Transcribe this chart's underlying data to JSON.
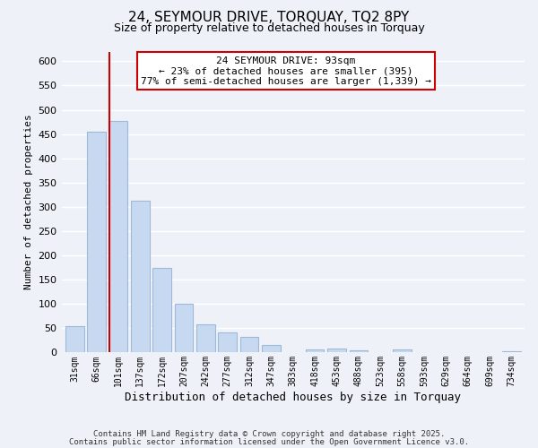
{
  "title_line1": "24, SEYMOUR DRIVE, TORQUAY, TQ2 8PY",
  "title_line2": "Size of property relative to detached houses in Torquay",
  "xlabel": "Distribution of detached houses by size in Torquay",
  "ylabel": "Number of detached properties",
  "bar_labels": [
    "31sqm",
    "66sqm",
    "101sqm",
    "137sqm",
    "172sqm",
    "207sqm",
    "242sqm",
    "277sqm",
    "312sqm",
    "347sqm",
    "383sqm",
    "418sqm",
    "453sqm",
    "488sqm",
    "523sqm",
    "558sqm",
    "593sqm",
    "629sqm",
    "664sqm",
    "699sqm",
    "734sqm"
  ],
  "bar_values": [
    55,
    455,
    477,
    312,
    175,
    100,
    58,
    42,
    32,
    15,
    0,
    6,
    9,
    5,
    0,
    7,
    0,
    0,
    0,
    0,
    2
  ],
  "bar_color": "#c6d9f0",
  "bar_edge_color": "#a0b8d8",
  "vline_x_index": 2,
  "vline_color": "#cc0000",
  "annotation_title": "24 SEYMOUR DRIVE: 93sqm",
  "annotation_line2": "← 23% of detached houses are smaller (395)",
  "annotation_line3": "77% of semi-detached houses are larger (1,339) →",
  "annotation_box_facecolor": "#ffffff",
  "annotation_box_edgecolor": "#cc0000",
  "ylim": [
    0,
    620
  ],
  "yticks": [
    0,
    50,
    100,
    150,
    200,
    250,
    300,
    350,
    400,
    450,
    500,
    550,
    600
  ],
  "background_color": "#eef2f8",
  "grid_color": "#ffffff",
  "footer_line1": "Contains HM Land Registry data © Crown copyright and database right 2025.",
  "footer_line2": "Contains public sector information licensed under the Open Government Licence v3.0."
}
